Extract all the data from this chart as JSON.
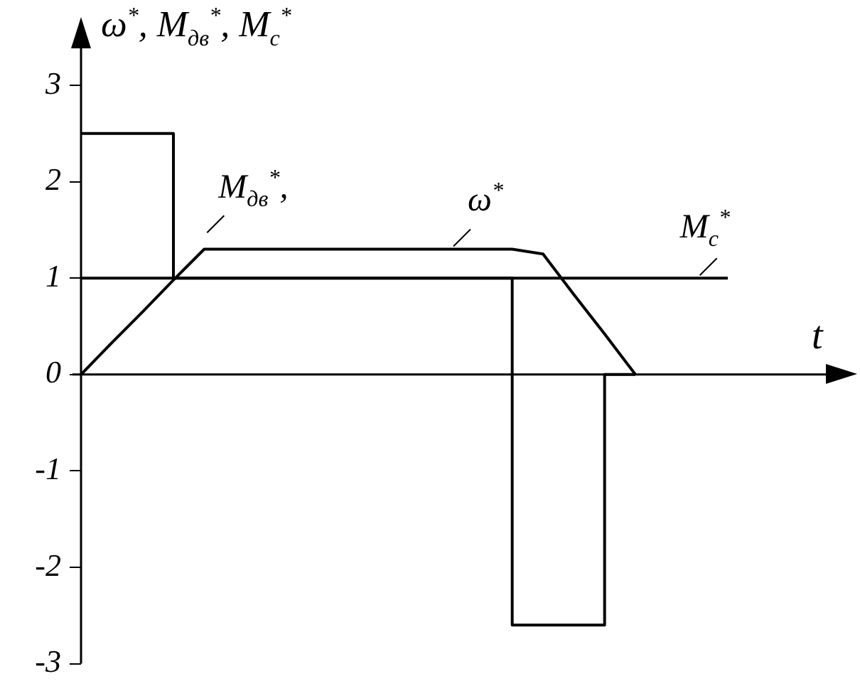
{
  "chart_data": {
    "type": "line",
    "xlabel": "t",
    "ylabel": "ω$^{*}$,  M$_{дв}$$^{*}$, M$_{c}$$^{*}$",
    "categories": [
      null,
      null,
      null,
      null,
      null,
      null,
      null,
      null,
      null,
      null,
      null,
      null,
      null,
      null,
      null,
      null,
      null,
      null,
      null,
      null,
      null,
      null,
      null,
      null,
      null
    ],
    "series": [
      {
        "name": "M$_{дв}$$^{*}$,",
        "type": "step",
        "color": "#000000",
        "values": [
          2.5,
          2.5,
          2.5,
          2.5,
          1,
          1,
          1,
          1,
          1,
          1,
          1,
          1,
          1,
          1,
          1,
          -2.6,
          -2.6,
          -2.6,
          0,
          null,
          null,
          null,
          null,
          null,
          null
        ]
      },
      {
        "name": "ω$^{*}$",
        "type": "line",
        "color": "#000000",
        "values": [
          0,
          0.33,
          0.65,
          0.98,
          1.3,
          1.3,
          1.3,
          1.3,
          1.3,
          1.3,
          1.3,
          1.3,
          1.3,
          1.3,
          1.3,
          1.25,
          0.83,
          0.42,
          0,
          null,
          null,
          null,
          null,
          null,
          null
        ]
      },
      {
        "name": "M$_{c}$$^{*}$",
        "type": "line",
        "color": "#000000",
        "values": [
          1,
          1,
          1,
          1,
          1,
          1,
          1,
          1,
          1,
          1,
          1,
          1,
          1,
          1,
          1,
          1,
          1,
          1,
          1,
          1,
          1,
          1,
          null,
          null,
          null
        ]
      }
    ],
    "ylim": [
      -3,
      3
    ],
    "yticks": [
      -3,
      -2,
      -1,
      0,
      1,
      2,
      3
    ],
    "tick_labels": "y",
    "grid": false,
    "legend": false,
    "marker": "none",
    "line_style": "solid"
  }
}
